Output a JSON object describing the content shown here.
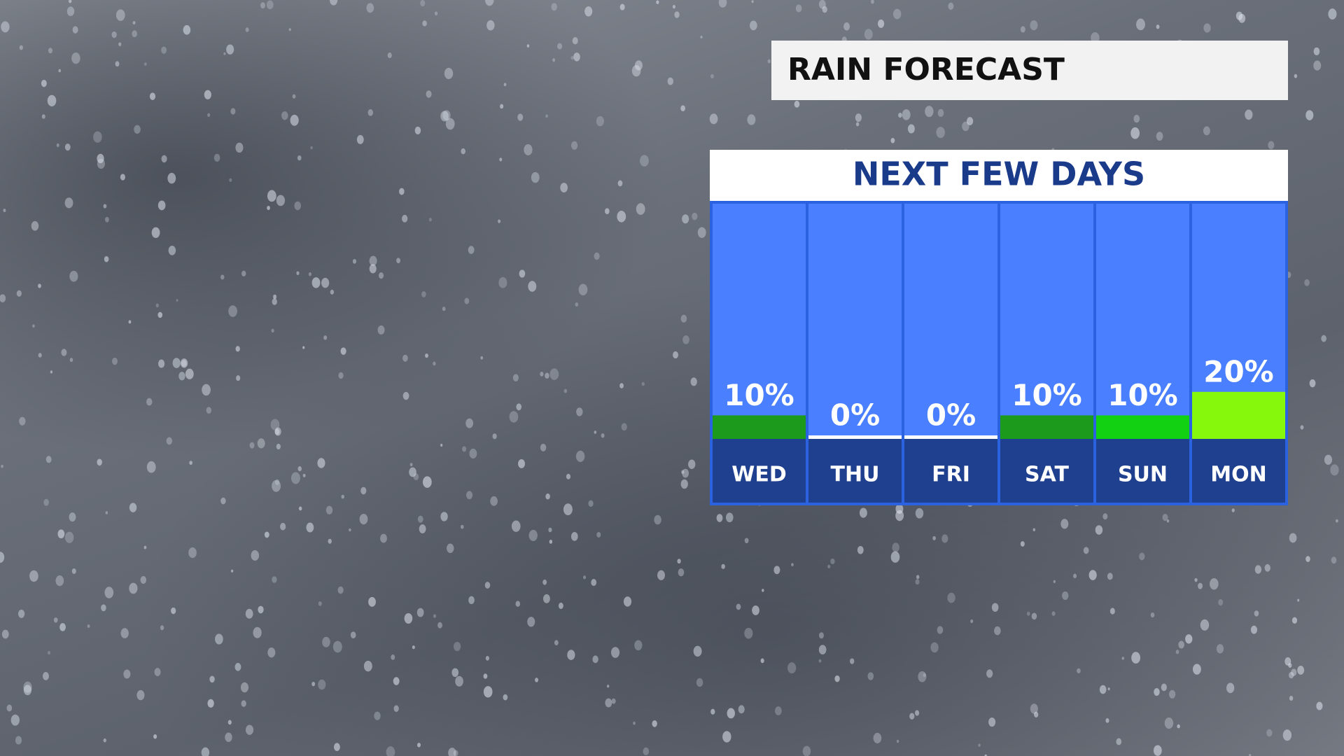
{
  "chart_data": {
    "type": "bar",
    "title": "RAIN FORECAST",
    "subtitle": "NEXT FEW DAYS",
    "categories": [
      "WED",
      "THU",
      "FRI",
      "SAT",
      "SUN",
      "MON"
    ],
    "values": [
      10,
      0,
      0,
      10,
      10,
      20
    ],
    "value_labels": [
      "10%",
      "0%",
      "0%",
      "10%",
      "10%",
      "20%"
    ],
    "colors": [
      "#1b9a1b",
      "#ffffff",
      "#ffffff",
      "#1b9a1b",
      "#12d012",
      "#86f80c"
    ],
    "ylim": [
      0,
      100
    ]
  }
}
